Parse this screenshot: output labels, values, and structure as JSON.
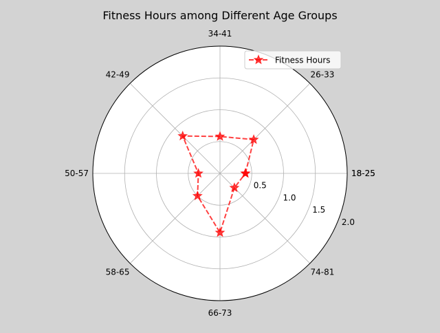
{
  "chart_data": {
    "type": "radar",
    "title": "Fitness Hours among Different Age Groups",
    "categories": [
      "18-25",
      "26-33",
      "34-41",
      "42-49",
      "50-57",
      "58-65",
      "66-73",
      "74-81",
      "18-25"
    ],
    "category_labels": [
      "18-25",
      "26-33",
      "34-41",
      "42-49",
      "50-57",
      "58-65",
      "66-73",
      "74-81"
    ],
    "series": [
      {
        "name": "Fitness Hours",
        "values": [
          0.4,
          0.75,
          0.58,
          0.83,
          0.34,
          0.5,
          0.93,
          0.32,
          0.4
        ]
      }
    ],
    "rlim": [
      0,
      2.0
    ],
    "r_ticks": [
      0.5,
      1.0,
      1.5,
      2.0
    ],
    "r_tick_labels": [
      "0.5",
      "1.0",
      "1.5",
      "2.0"
    ],
    "grid": true,
    "legend_position": "top-right",
    "colors": {
      "series": "#ff0000",
      "grid": "#b0b0b0",
      "background": "#d3d3d3",
      "axes_face": "#ffffff"
    }
  }
}
